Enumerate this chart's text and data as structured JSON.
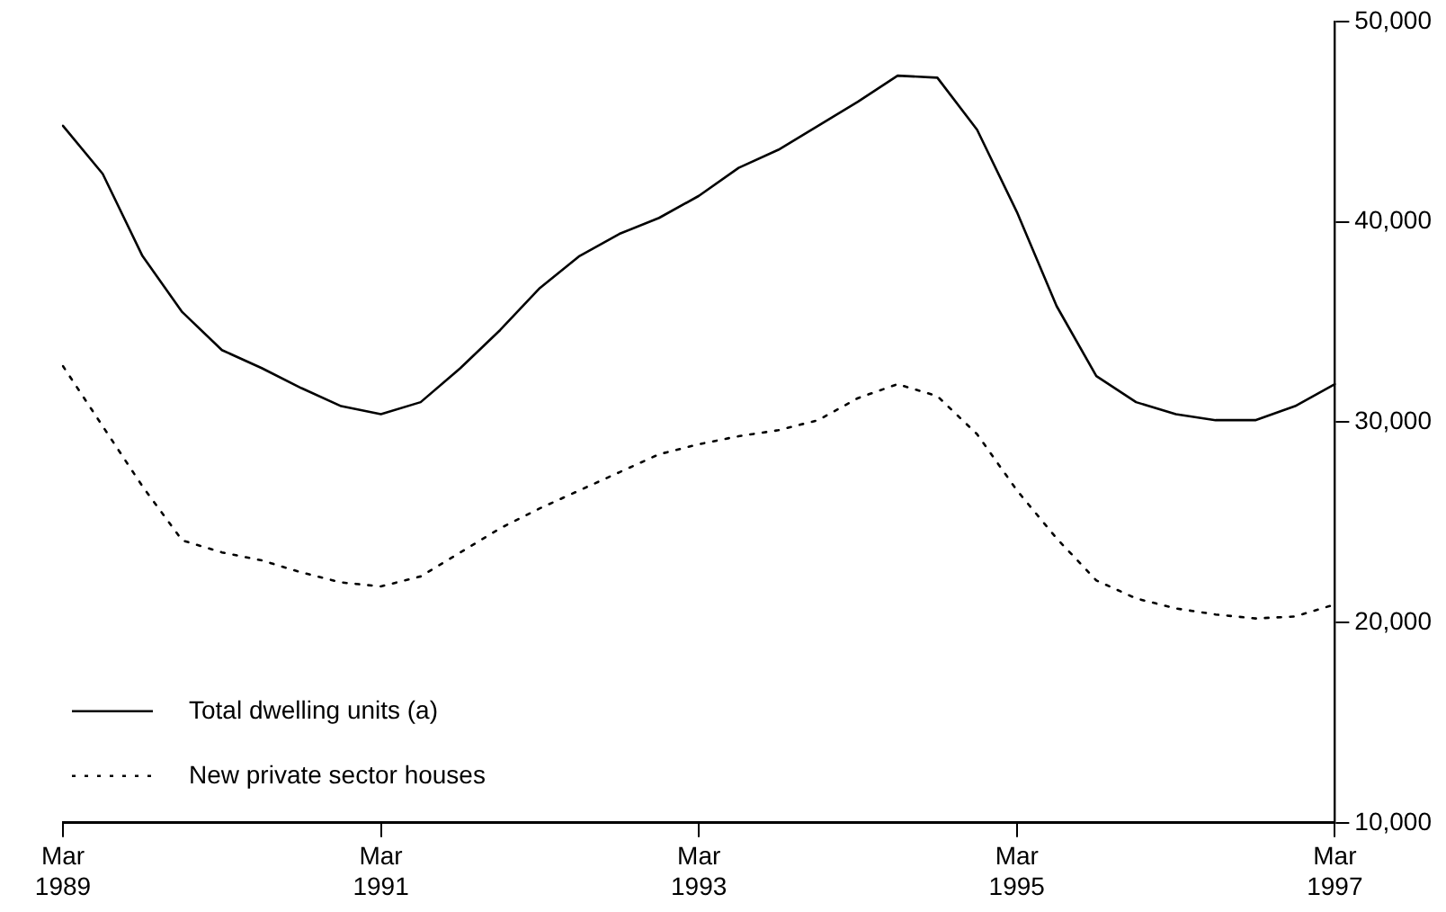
{
  "chart_data": {
    "type": "line",
    "categories": [
      "Mar 1989",
      null,
      null,
      null,
      null,
      null,
      null,
      null,
      "Mar 1991",
      null,
      null,
      null,
      null,
      null,
      null,
      null,
      "Mar 1993",
      null,
      null,
      null,
      null,
      null,
      null,
      null,
      "Mar 1995",
      null,
      null,
      null,
      null,
      null,
      null,
      null,
      "Mar 1997"
    ],
    "series": [
      {
        "name": "Total dwelling units (a)",
        "color": "#000000",
        "line_style": "solid",
        "values": [
          44800,
          42400,
          38300,
          35500,
          33600,
          32700,
          31700,
          30800,
          30400,
          31000,
          32700,
          34600,
          36700,
          38300,
          39400,
          40200,
          41300,
          42700,
          43600,
          44800,
          46000,
          47300,
          47200,
          44600,
          40500,
          35800,
          32300,
          31000,
          30400,
          30100,
          30100,
          30800,
          31900
        ]
      },
      {
        "name": "New private sector houses",
        "color": "#000000",
        "line_style": "dotted",
        "values": [
          32800,
          29800,
          26800,
          24100,
          23500,
          23100,
          22500,
          22000,
          21800,
          22300,
          23500,
          24700,
          25700,
          26600,
          27500,
          28400,
          28900,
          29300,
          29600,
          30100,
          31200,
          31900,
          31300,
          29400,
          26600,
          24200,
          22100,
          21200,
          20700,
          20400,
          20200,
          20300,
          20900
        ]
      }
    ],
    "ylim": [
      10000,
      50000
    ],
    "yticks": [
      {
        "value": 10000,
        "label": "10,000"
      },
      {
        "value": 20000,
        "label": "20,000"
      },
      {
        "value": 30000,
        "label": "30,000"
      },
      {
        "value": 40000,
        "label": "40,000"
      },
      {
        "value": 50000,
        "label": "50,000"
      }
    ],
    "grid": false,
    "legend": "bottom left",
    "marker": "none"
  }
}
